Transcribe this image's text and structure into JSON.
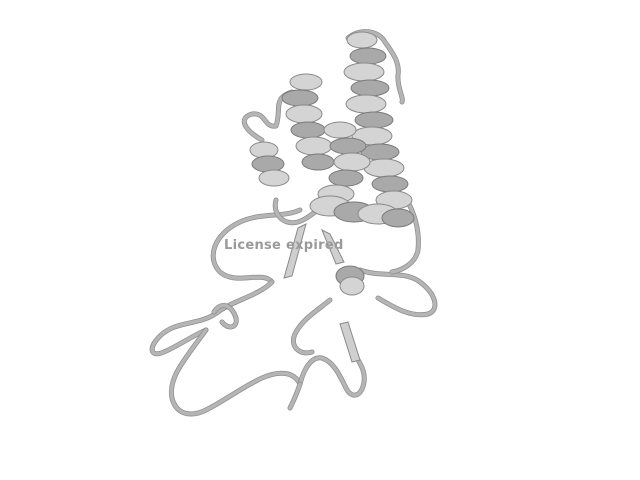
{
  "watermark": {
    "text": "License expired"
  },
  "colors": {
    "background": "#ffffff",
    "ribbon": "#cfcfcf",
    "ribbon_shadow": "#8a8a8a",
    "watermark": "#9a9a9a"
  }
}
